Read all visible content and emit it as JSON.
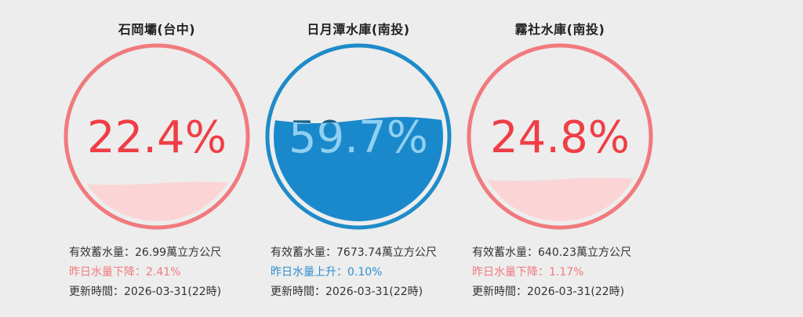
{
  "reservoirs": [
    {
      "name": "石岡壩(台中)",
      "percent_text": "22.4%",
      "level": 0.224,
      "storage_label": "有效蓄水量：",
      "storage_value": "26.99萬立方公尺",
      "change_label": "昨日水量下降：",
      "change_value": "2.41%",
      "change_direction": "down",
      "update_label": "更新時間：",
      "update_value": "2026-03-31(22時)"
    },
    {
      "name": "日月潭水庫(南投)",
      "percent_text": "59.7%",
      "level": 0.597,
      "storage_label": "有效蓄水量：",
      "storage_value": "7673.74萬立方公尺",
      "change_label": "昨日水量上升：",
      "change_value": "0.10%",
      "change_direction": "up",
      "update_label": "更新時間：",
      "update_value": "2026-03-31(22時)"
    },
    {
      "name": "霧社水庫(南投)",
      "percent_text": "24.8%",
      "level": 0.248,
      "storage_label": "有效蓄水量：",
      "storage_value": "640.23萬立方公尺",
      "change_label": "昨日水量下降：",
      "change_value": "1.17%",
      "change_direction": "down",
      "update_label": "更新時間：",
      "update_value": "2026-03-31(22時)"
    }
  ],
  "colors": {
    "low_ring": "#f17a7e",
    "low_text": "#ef3e45",
    "low_fill": "#fbd5d6",
    "mid_ring": "#1e8bc9",
    "mid_text": "#1d5f86",
    "mid_fill": "#1a89cc",
    "mid_text_on_water": "#8fd0f2",
    "up_text": "#2b8fd0",
    "down_text": "#f07a80",
    "background": "#ededed"
  }
}
